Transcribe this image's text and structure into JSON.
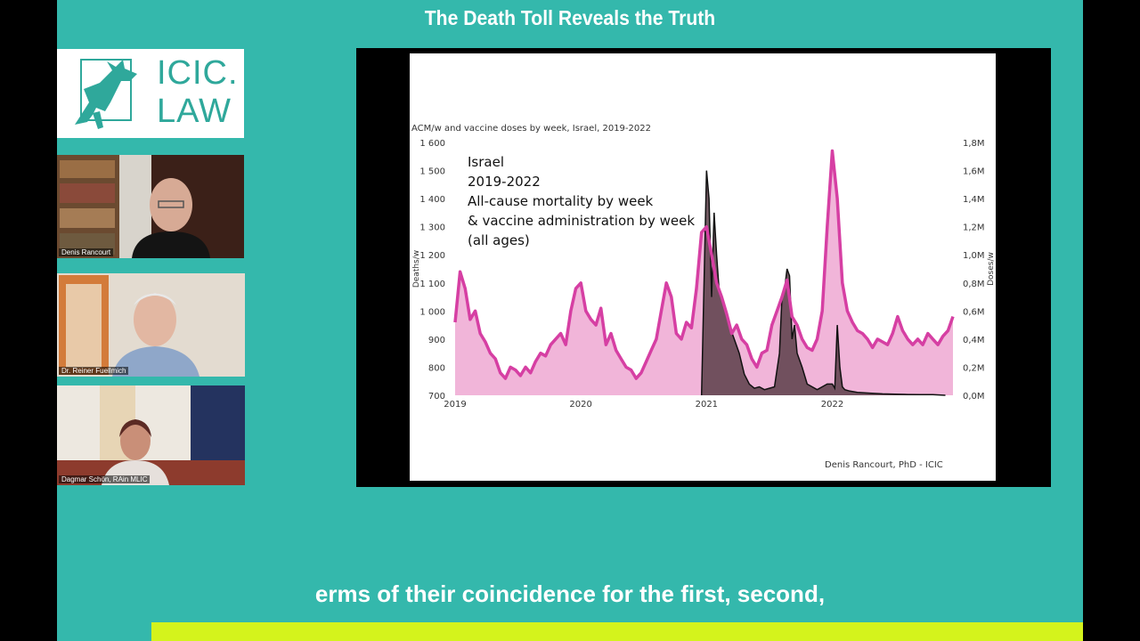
{
  "header": {
    "title": "The Death Toll Reveals the Truth"
  },
  "logo": {
    "line1": "ICIC.",
    "line2": "LAW"
  },
  "participants": [
    {
      "name": "Denis Rancourt"
    },
    {
      "name": "Dr. Reiner Fuellmich"
    },
    {
      "name": "Dagmar Schön, RAin MLIC"
    }
  ],
  "chart_data": {
    "type": "area",
    "title": "ACM/w and vaccine doses by week, Israel, 2019-2022",
    "annotation": [
      "Israel",
      "2019-2022",
      "All-cause mortality by week",
      "& vaccine administration by week",
      "(all ages)"
    ],
    "ylabel": "Deaths/w",
    "y2label": "Doses/w",
    "ylim": [
      700,
      1600
    ],
    "y2lim": [
      0,
      1800000
    ],
    "yticks": [
      "700",
      "800",
      "900",
      "1 000",
      "1 100",
      "1 200",
      "1 300",
      "1 400",
      "1 500",
      "1 600"
    ],
    "y2ticks": [
      "0,0M",
      "0,2M",
      "0,4M",
      "0,6M",
      "0,8M",
      "1,0M",
      "1,2M",
      "1,4M",
      "1,6M",
      "1,8M"
    ],
    "xticks": [
      "2019",
      "2020",
      "2021",
      "2022"
    ],
    "credit": "Denis Rancourt, PhD - ICIC",
    "grid": false,
    "legend": "none",
    "colors": {
      "deaths_line": "#d63fa3",
      "deaths_fill": "#f1b5d9",
      "doses_fill": "#5a3e48",
      "doses_line": "#111111"
    },
    "series": [
      {
        "x": [
          2019.0,
          2019.04,
          2019.08,
          2019.12,
          2019.16,
          2019.2,
          2019.24,
          2019.28,
          2019.32,
          2019.36,
          2019.4,
          2019.44,
          2019.48,
          2019.52,
          2019.56,
          2019.6,
          2019.64,
          2019.68,
          2019.72,
          2019.76,
          2019.8,
          2019.84,
          2019.88,
          2019.92,
          2019.96,
          2020.0,
          2020.04,
          2020.08,
          2020.12,
          2020.16,
          2020.2,
          2020.24,
          2020.28,
          2020.32,
          2020.36,
          2020.4,
          2020.44,
          2020.48,
          2020.52,
          2020.56,
          2020.6,
          2020.64,
          2020.68,
          2020.72,
          2020.76,
          2020.8,
          2020.84,
          2020.88,
          2020.92,
          2020.96,
          2021.0,
          2021.04,
          2021.08,
          2021.12,
          2021.16,
          2021.2,
          2021.24,
          2021.28,
          2021.32,
          2021.36,
          2021.4,
          2021.44,
          2021.48,
          2021.52,
          2021.56,
          2021.6,
          2021.64,
          2021.68,
          2021.72,
          2021.76,
          2021.8,
          2021.84,
          2021.88,
          2021.92,
          2021.96,
          2022.0,
          2022.04,
          2022.08,
          2022.12,
          2022.16,
          2022.2,
          2022.24,
          2022.28,
          2022.32,
          2022.36,
          2022.4,
          2022.44,
          2022.48,
          2022.52,
          2022.56,
          2022.6,
          2022.64,
          2022.68,
          2022.72,
          2022.76,
          2022.8,
          2022.84,
          2022.88,
          2022.92,
          2022.96
        ],
        "y": [
          960,
          1140,
          1080,
          970,
          1000,
          920,
          890,
          850,
          830,
          780,
          760,
          800,
          790,
          770,
          800,
          780,
          820,
          850,
          840,
          880,
          900,
          920,
          880,
          1000,
          1080,
          1100,
          1000,
          970,
          950,
          1010,
          880,
          920,
          860,
          830,
          800,
          790,
          760,
          780,
          820,
          860,
          900,
          1000,
          1100,
          1050,
          920,
          900,
          960,
          940,
          1080,
          1280,
          1300,
          1200,
          1100,
          1050,
          990,
          920,
          950,
          900,
          880,
          830,
          800,
          850,
          860,
          950,
          1000,
          1050,
          1110,
          980,
          950,
          900,
          870,
          860,
          900,
          1000,
          1300,
          1570,
          1400,
          1100,
          1000,
          960,
          930,
          920,
          900,
          870,
          900,
          890,
          880,
          920,
          980,
          930,
          900,
          880,
          900,
          880,
          920,
          900,
          880,
          910,
          930,
          980
        ]
      },
      {
        "x": [
          2020.96,
          2021.0,
          2021.02,
          2021.04,
          2021.06,
          2021.08,
          2021.1,
          2021.14,
          2021.18,
          2021.22,
          2021.26,
          2021.3,
          2021.34,
          2021.38,
          2021.42,
          2021.46,
          2021.5,
          2021.54,
          2021.58,
          2021.6,
          2021.62,
          2021.64,
          2021.66,
          2021.68,
          2021.7,
          2021.72,
          2021.76,
          2021.8,
          2021.84,
          2021.88,
          2021.92,
          2021.96,
          2022.0,
          2022.02,
          2022.04,
          2022.06,
          2022.08,
          2022.1,
          2022.14,
          2022.2,
          2022.3,
          2022.4,
          2022.5,
          2022.6,
          2022.7,
          2022.8,
          2022.9
        ],
        "y": [
          0,
          1600000,
          1400000,
          700000,
          1300000,
          1000000,
          750000,
          650000,
          500000,
          400000,
          300000,
          150000,
          80000,
          50000,
          60000,
          40000,
          50000,
          60000,
          300000,
          700000,
          750000,
          900000,
          850000,
          400000,
          500000,
          300000,
          200000,
          80000,
          60000,
          40000,
          60000,
          80000,
          80000,
          50000,
          500000,
          200000,
          60000,
          40000,
          30000,
          20000,
          15000,
          10000,
          8000,
          6000,
          5000,
          5000,
          0
        ]
      }
    ]
  },
  "captions": {
    "current": "erms of their coincidence for the first, second,"
  }
}
